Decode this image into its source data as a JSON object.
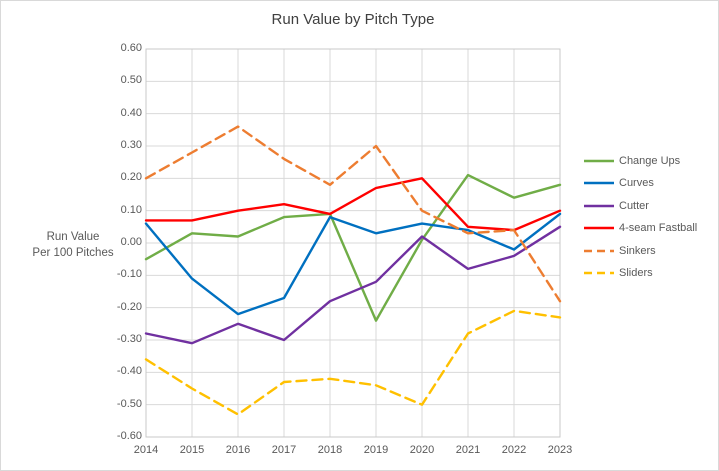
{
  "chart_data": {
    "type": "line",
    "title": "Run Value by Pitch Type",
    "ylabel_line1": "Run Value",
    "ylabel_line2": "Per 100 Pitches",
    "categories": [
      "2014",
      "2015",
      "2016",
      "2017",
      "2018",
      "2019",
      "2020",
      "2021",
      "2022",
      "2023"
    ],
    "ylim": [
      -0.6,
      0.6
    ],
    "ytick_step": 0.1,
    "grid": true,
    "legend_position": "right",
    "colors": {
      "gridline": "#d9d9d9",
      "axis_text": "#595959",
      "title_text": "#404040"
    },
    "series": [
      {
        "name": "Change Ups",
        "color": "#70AD47",
        "dash": "solid",
        "values": [
          -0.05,
          0.03,
          0.02,
          0.08,
          0.09,
          -0.24,
          0.01,
          0.21,
          0.14,
          0.18
        ]
      },
      {
        "name": "Curves",
        "color": "#0070C0",
        "dash": "solid",
        "values": [
          0.06,
          -0.11,
          -0.22,
          -0.17,
          0.08,
          0.03,
          0.06,
          0.04,
          -0.02,
          0.09
        ]
      },
      {
        "name": "Cutter",
        "color": "#7030A0",
        "dash": "solid",
        "values": [
          -0.28,
          -0.31,
          -0.25,
          -0.3,
          -0.18,
          -0.12,
          0.02,
          -0.08,
          -0.04,
          0.05
        ]
      },
      {
        "name": "4-seam Fastball",
        "color": "#FF0000",
        "dash": "solid",
        "values": [
          0.07,
          0.07,
          0.1,
          0.12,
          0.09,
          0.17,
          0.2,
          0.05,
          0.04,
          0.1
        ]
      },
      {
        "name": "Sinkers",
        "color": "#ED7D31",
        "dash": "dashed",
        "values": [
          0.2,
          0.28,
          0.36,
          0.26,
          0.18,
          0.3,
          0.1,
          0.03,
          0.04,
          -0.18
        ]
      },
      {
        "name": "Sliders",
        "color": "#FFC000",
        "dash": "dashed",
        "values": [
          -0.36,
          -0.45,
          -0.53,
          -0.43,
          -0.42,
          -0.44,
          -0.5,
          -0.28,
          -0.21,
          -0.23
        ]
      }
    ]
  }
}
